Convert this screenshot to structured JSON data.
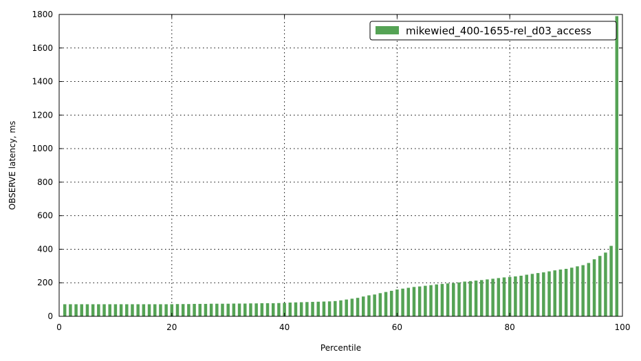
{
  "chart_data": {
    "type": "bar",
    "xlabel": "Percentile",
    "ylabel": "OBSERVE latency, ms",
    "xlim": [
      0,
      100
    ],
    "ylim": [
      0,
      1800
    ],
    "xticks": [
      0,
      20,
      40,
      60,
      80,
      100
    ],
    "yticks": [
      0,
      200,
      400,
      600,
      800,
      1000,
      1200,
      1400,
      1600,
      1800
    ],
    "grid": true,
    "legend_position": "top-right",
    "bar_color": "#55a355",
    "series": [
      {
        "name": "mikewied_400-1655-rel_d03_access",
        "x": [
          1,
          2,
          3,
          4,
          5,
          6,
          7,
          8,
          9,
          10,
          11,
          12,
          13,
          14,
          15,
          16,
          17,
          18,
          19,
          20,
          21,
          22,
          23,
          24,
          25,
          26,
          27,
          28,
          29,
          30,
          31,
          32,
          33,
          34,
          35,
          36,
          37,
          38,
          39,
          40,
          41,
          42,
          43,
          44,
          45,
          46,
          47,
          48,
          49,
          50,
          51,
          52,
          53,
          54,
          55,
          56,
          57,
          58,
          59,
          60,
          61,
          62,
          63,
          64,
          65,
          66,
          67,
          68,
          69,
          70,
          71,
          72,
          73,
          74,
          75,
          76,
          77,
          78,
          79,
          80,
          81,
          82,
          83,
          84,
          85,
          86,
          87,
          88,
          89,
          90,
          91,
          92,
          93,
          94,
          95,
          96,
          97,
          98,
          99
        ],
        "values": [
          72,
          72,
          72,
          72,
          72,
          72,
          72,
          72,
          72,
          72,
          72,
          72,
          72,
          72,
          72,
          72,
          72,
          72,
          72,
          72,
          73,
          73,
          73,
          74,
          74,
          74,
          75,
          75,
          75,
          75,
          76,
          76,
          76,
          77,
          77,
          78,
          78,
          78,
          79,
          80,
          82,
          83,
          84,
          85,
          86,
          87,
          88,
          89,
          91,
          95,
          100,
          105,
          110,
          118,
          125,
          130,
          138,
          145,
          152,
          160,
          165,
          170,
          175,
          178,
          182,
          186,
          190,
          193,
          196,
          198,
          202,
          207,
          210,
          213,
          216,
          220,
          224,
          228,
          232,
          235,
          238,
          242,
          248,
          253,
          258,
          262,
          268,
          274,
          279,
          283,
          290,
          298,
          305,
          318,
          340,
          360,
          380,
          420,
          1790
        ]
      }
    ]
  }
}
